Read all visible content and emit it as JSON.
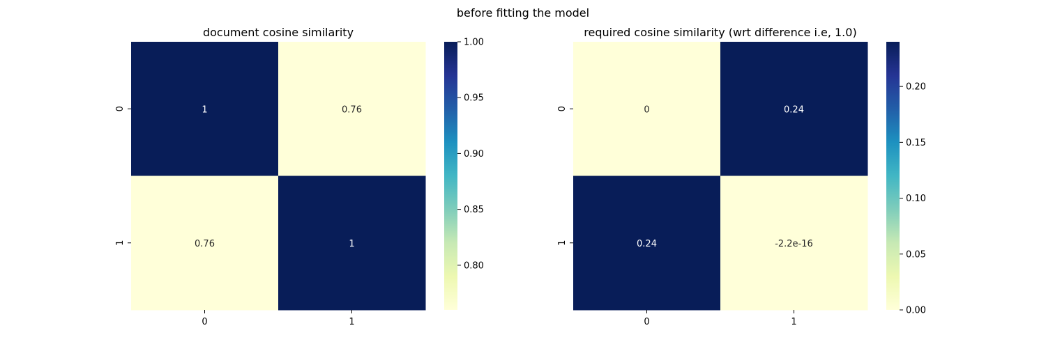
{
  "figure": {
    "suptitle": "before fitting the model"
  },
  "chart_data": [
    {
      "type": "heatmap",
      "title": "document cosine similarity",
      "x_categories": [
        "0",
        "1"
      ],
      "y_categories": [
        "0",
        "1"
      ],
      "values": [
        [
          1.0,
          0.76
        ],
        [
          0.76,
          1.0
        ]
      ],
      "annotations": [
        [
          "1",
          "0.76"
        ],
        [
          "0.76",
          "1"
        ]
      ],
      "colormap": "YlGnBu",
      "vmin": 0.76,
      "vmax": 1.0,
      "colorbar_ticks": [
        0.8,
        0.85,
        0.9,
        0.95,
        1.0
      ],
      "colorbar_tick_labels": [
        "0.80",
        "0.85",
        "0.90",
        "0.95",
        "1.00"
      ]
    },
    {
      "type": "heatmap",
      "title": "required cosine similarity (wrt difference  i.e, 1.0)",
      "x_categories": [
        "0",
        "1"
      ],
      "y_categories": [
        "0",
        "1"
      ],
      "values": [
        [
          0.0,
          0.24
        ],
        [
          0.24,
          -2.2e-16
        ]
      ],
      "annotations": [
        [
          "0",
          "0.24"
        ],
        [
          "0.24",
          "-2.2e-16"
        ]
      ],
      "colormap": "YlGnBu",
      "vmin": -2.2e-16,
      "vmax": 0.24,
      "colorbar_ticks": [
        0.0,
        0.05,
        0.1,
        0.15,
        0.2
      ],
      "colorbar_tick_labels": [
        "0.00",
        "0.05",
        "0.10",
        "0.15",
        "0.20"
      ]
    }
  ],
  "colors": {
    "high": "#081d58",
    "low": "#ffffd9",
    "annotation_on_dark": "#ffffff",
    "annotation_on_light": "#262626"
  }
}
